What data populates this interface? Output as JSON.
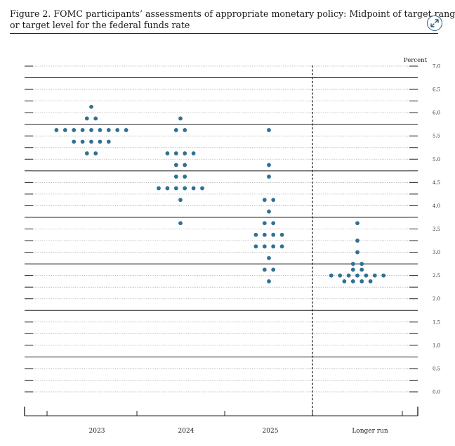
{
  "caption": {
    "line1": "Figure 2.  FOMC participants’ assessments of appropriate monetary policy:  Midpoint of target range",
    "line2": "or target level for the federal funds rate"
  },
  "expand_icon": "expand-arrows-icon",
  "colors": {
    "dot": "#2f7193",
    "grid_dotted": "#9a9a9a",
    "grid_solid": "#222222",
    "text": "#222222"
  },
  "chart_data": {
    "type": "scatter",
    "title": "",
    "ylabel": "Percent",
    "ylim": [
      0,
      7
    ],
    "y_ticks": [
      "0.0",
      "0.5",
      "1.0",
      "1.5",
      "2.0",
      "2.5",
      "3.0",
      "3.5",
      "4.0",
      "4.5",
      "5.0",
      "5.5",
      "6.0",
      "6.5",
      "7.0"
    ],
    "grid": "dotted at 0.25, solid at 0.75",
    "categories": [
      "2023",
      "2024",
      "2025",
      "Longer run"
    ],
    "series": [
      {
        "category": "2023",
        "dots": [
          {
            "y": 6.125,
            "count": 1
          },
          {
            "y": 5.875,
            "count": 2
          },
          {
            "y": 5.625,
            "count": 9
          },
          {
            "y": 5.375,
            "count": 5
          },
          {
            "y": 5.125,
            "count": 2
          }
        ]
      },
      {
        "category": "2024",
        "dots": [
          {
            "y": 5.875,
            "count": 1
          },
          {
            "y": 5.625,
            "count": 2
          },
          {
            "y": 5.125,
            "count": 4
          },
          {
            "y": 4.875,
            "count": 2
          },
          {
            "y": 4.625,
            "count": 2
          },
          {
            "y": 4.375,
            "count": 6
          },
          {
            "y": 4.125,
            "count": 1
          },
          {
            "y": 3.625,
            "count": 1
          }
        ]
      },
      {
        "category": "2025",
        "dots": [
          {
            "y": 5.625,
            "count": 1
          },
          {
            "y": 4.875,
            "count": 1
          },
          {
            "y": 4.625,
            "count": 1
          },
          {
            "y": 4.125,
            "count": 2
          },
          {
            "y": 3.875,
            "count": 1
          },
          {
            "y": 3.625,
            "count": 2
          },
          {
            "y": 3.375,
            "count": 4
          },
          {
            "y": 3.125,
            "count": 4
          },
          {
            "y": 2.875,
            "count": 1
          },
          {
            "y": 2.625,
            "count": 2
          },
          {
            "y": 2.375,
            "count": 1
          }
        ]
      },
      {
        "category": "Longer run",
        "dots": [
          {
            "y": 3.625,
            "count": 1
          },
          {
            "y": 3.25,
            "count": 1
          },
          {
            "y": 3.0,
            "count": 1
          },
          {
            "y": 2.75,
            "count": 2
          },
          {
            "y": 2.625,
            "count": 2
          },
          {
            "y": 2.5,
            "count": 7
          },
          {
            "y": 2.375,
            "count": 4
          }
        ]
      }
    ]
  }
}
